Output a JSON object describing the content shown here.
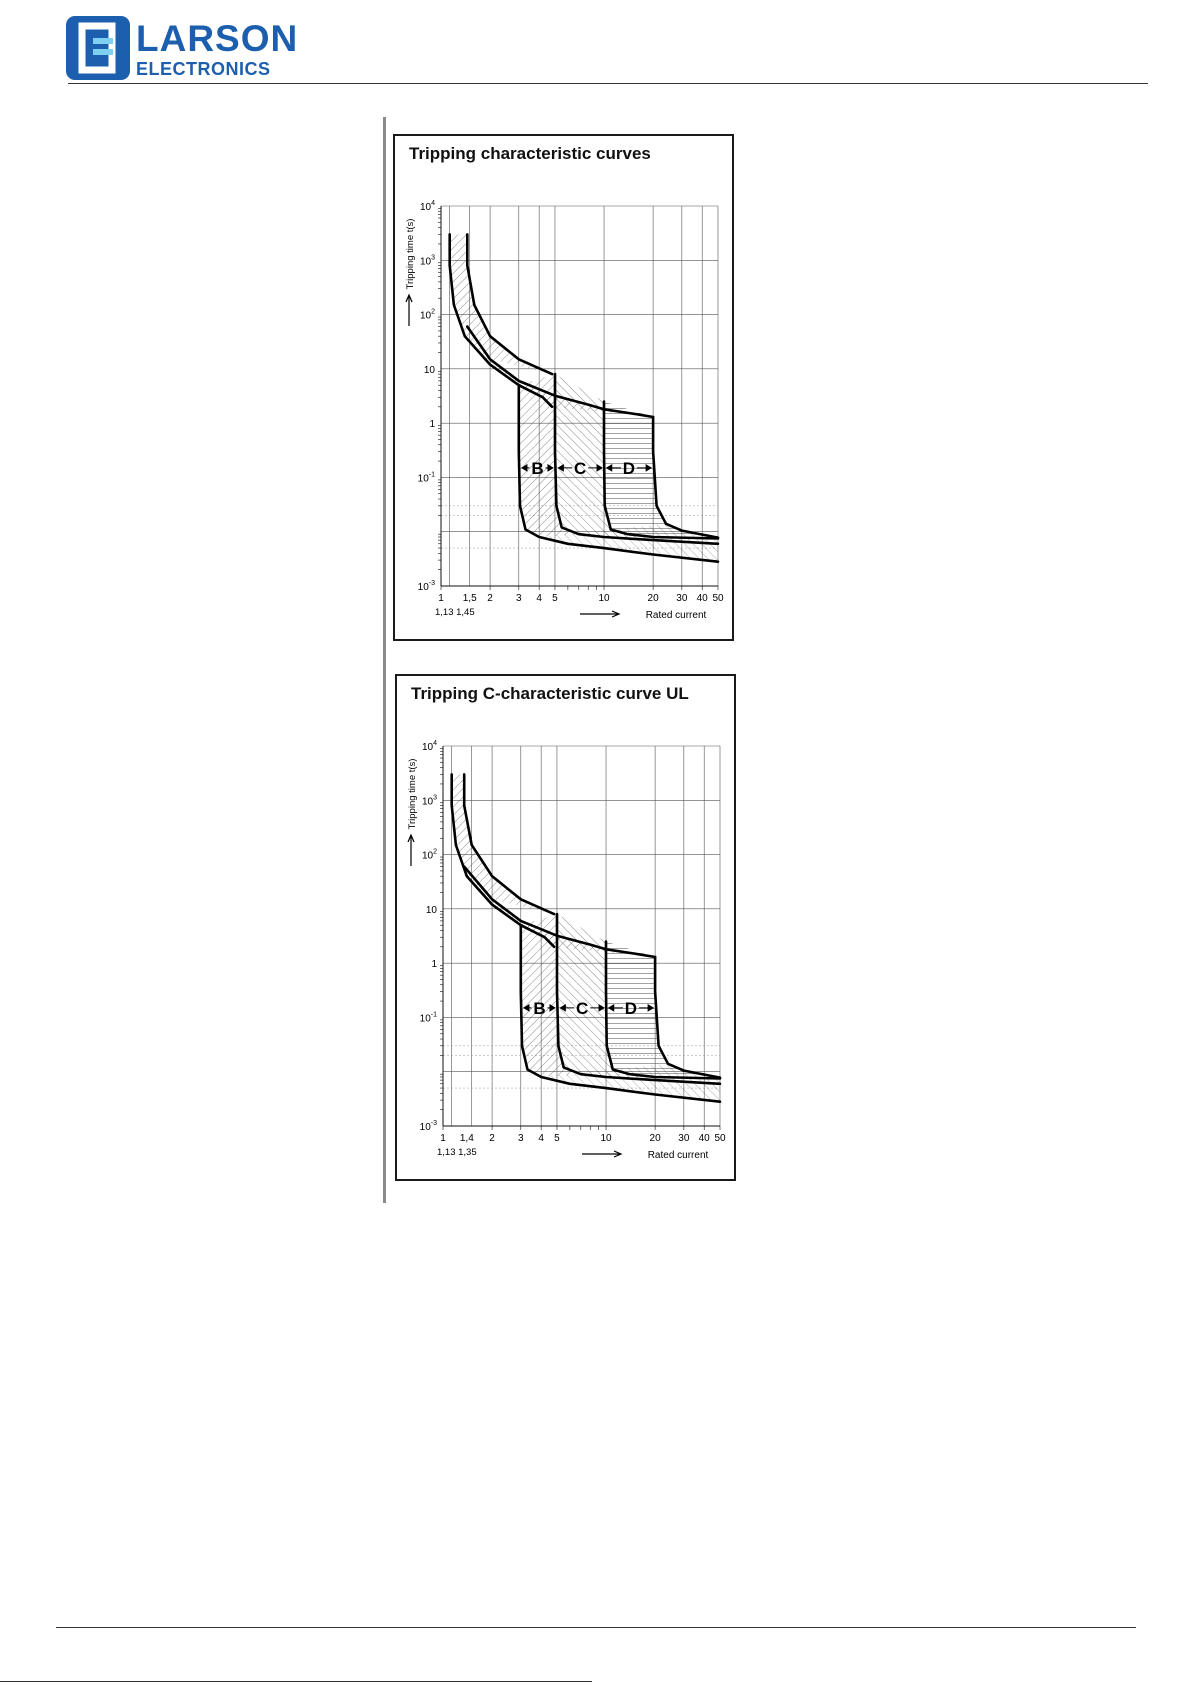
{
  "header": {
    "logo_title": "LARSON",
    "logo_sub": "ELECTRONICS",
    "brand_color": "#1c5fae",
    "logo_icon": "larson-logo-icon"
  },
  "chart_data": [
    {
      "type": "line",
      "title": "Tripping characteristic curves",
      "ylabel": "Tripping time t(s)",
      "xlabel": "Rated current",
      "x_scale": "log",
      "y_scale": "log",
      "xlim": [
        1,
        50
      ],
      "ylim": [
        0.001,
        10000
      ],
      "grid": true,
      "x_ticks": [
        "1",
        "1,5",
        "2",
        "3",
        "4",
        "5",
        "10",
        "20",
        "30",
        "40",
        "50"
      ],
      "x_ticks_lower": [
        "1,13",
        "1,45"
      ],
      "y_ticks": [
        {
          "base": "10",
          "exp": "4"
        },
        {
          "base": "10",
          "exp": "3"
        },
        {
          "base": "10",
          "exp": "2"
        },
        {
          "base": "10",
          "exp": ""
        },
        {
          "base": "1",
          "exp": ""
        },
        {
          "base": "10",
          "exp": "-1"
        },
        {
          "base": "10",
          "exp": "-3"
        }
      ],
      "region_labels": [
        "B",
        "C",
        "D"
      ],
      "series": [
        {
          "x": [
            1.13,
            1.13,
            1.2,
            1.4,
            2,
            3,
            4.2,
            4.8
          ],
          "y": [
            3000,
            800,
            150,
            40,
            12,
            5,
            3,
            2
          ]
        },
        {
          "x": [
            1.45,
            1.45,
            1.6,
            2,
            3,
            4.8
          ],
          "y": [
            3000,
            800,
            150,
            40,
            15,
            8
          ]
        },
        {
          "x": [
            1.45,
            2,
            3,
            5,
            8,
            10,
            15,
            20
          ],
          "y": [
            60,
            15,
            6,
            3.2,
            2.2,
            1.8,
            1.5,
            1.3
          ]
        },
        {
          "x": [
            3,
            3,
            3.05,
            3.3,
            4,
            6,
            10,
            20,
            50
          ],
          "y": [
            5,
            0.3,
            0.03,
            0.011,
            0.008,
            0.006,
            0.005,
            0.0038,
            0.0028
          ]
        },
        {
          "x": [
            5,
            5,
            5.1,
            5.5,
            7,
            10,
            20,
            50
          ],
          "y": [
            8,
            0.3,
            0.03,
            0.012,
            0.009,
            0.008,
            0.007,
            0.006
          ]
        },
        {
          "x": [
            10,
            10,
            10.1,
            11,
            14,
            20,
            50
          ],
          "y": [
            2.5,
            0.3,
            0.03,
            0.011,
            0.009,
            0.008,
            0.0075
          ]
        },
        {
          "x": [
            20,
            20,
            21,
            24,
            30,
            50
          ],
          "y": [
            1.3,
            0.3,
            0.03,
            0.014,
            0.0105,
            0.0078
          ]
        }
      ]
    },
    {
      "type": "line",
      "title": "Tripping C-characteristic curve UL",
      "ylabel": "Tripping time t(s)",
      "xlabel": "Rated current",
      "x_scale": "log",
      "y_scale": "log",
      "xlim": [
        1,
        50
      ],
      "ylim": [
        0.001,
        10000
      ],
      "grid": true,
      "x_ticks": [
        "1",
        "1,4",
        "2",
        "3",
        "4",
        "5",
        "10",
        "20",
        "30",
        "40",
        "50"
      ],
      "x_ticks_lower": [
        "1,13",
        "1,35"
      ],
      "y_ticks": [
        {
          "base": "10",
          "exp": "4"
        },
        {
          "base": "10",
          "exp": "3"
        },
        {
          "base": "10",
          "exp": "2"
        },
        {
          "base": "10",
          "exp": ""
        },
        {
          "base": "1",
          "exp": ""
        },
        {
          "base": "10",
          "exp": "-1"
        },
        {
          "base": "10",
          "exp": "-3"
        }
      ],
      "region_labels": [
        "B",
        "C",
        "D"
      ],
      "series": [
        {
          "x": [
            1.13,
            1.13,
            1.2,
            1.4,
            2,
            3,
            4.2,
            4.8
          ],
          "y": [
            3000,
            800,
            150,
            40,
            12,
            5,
            3,
            2
          ]
        },
        {
          "x": [
            1.35,
            1.35,
            1.5,
            2,
            3,
            4.8
          ],
          "y": [
            3000,
            800,
            150,
            40,
            15,
            8
          ]
        },
        {
          "x": [
            1.35,
            2,
            3,
            5,
            8,
            10,
            15,
            20
          ],
          "y": [
            60,
            15,
            6,
            3.2,
            2.2,
            1.8,
            1.5,
            1.3
          ]
        },
        {
          "x": [
            3,
            3,
            3.05,
            3.3,
            4,
            6,
            10,
            20,
            50
          ],
          "y": [
            5,
            0.3,
            0.03,
            0.011,
            0.008,
            0.006,
            0.005,
            0.0038,
            0.0028
          ]
        },
        {
          "x": [
            5,
            5,
            5.1,
            5.5,
            7,
            10,
            20,
            50
          ],
          "y": [
            8,
            0.3,
            0.03,
            0.012,
            0.009,
            0.008,
            0.007,
            0.006
          ]
        },
        {
          "x": [
            10,
            10,
            10.1,
            11,
            14,
            20,
            50
          ],
          "y": [
            2.5,
            0.3,
            0.03,
            0.011,
            0.009,
            0.008,
            0.0075
          ]
        },
        {
          "x": [
            20,
            20,
            21,
            24,
            30,
            50
          ],
          "y": [
            1.3,
            0.3,
            0.03,
            0.014,
            0.0105,
            0.0078
          ]
        }
      ]
    }
  ]
}
